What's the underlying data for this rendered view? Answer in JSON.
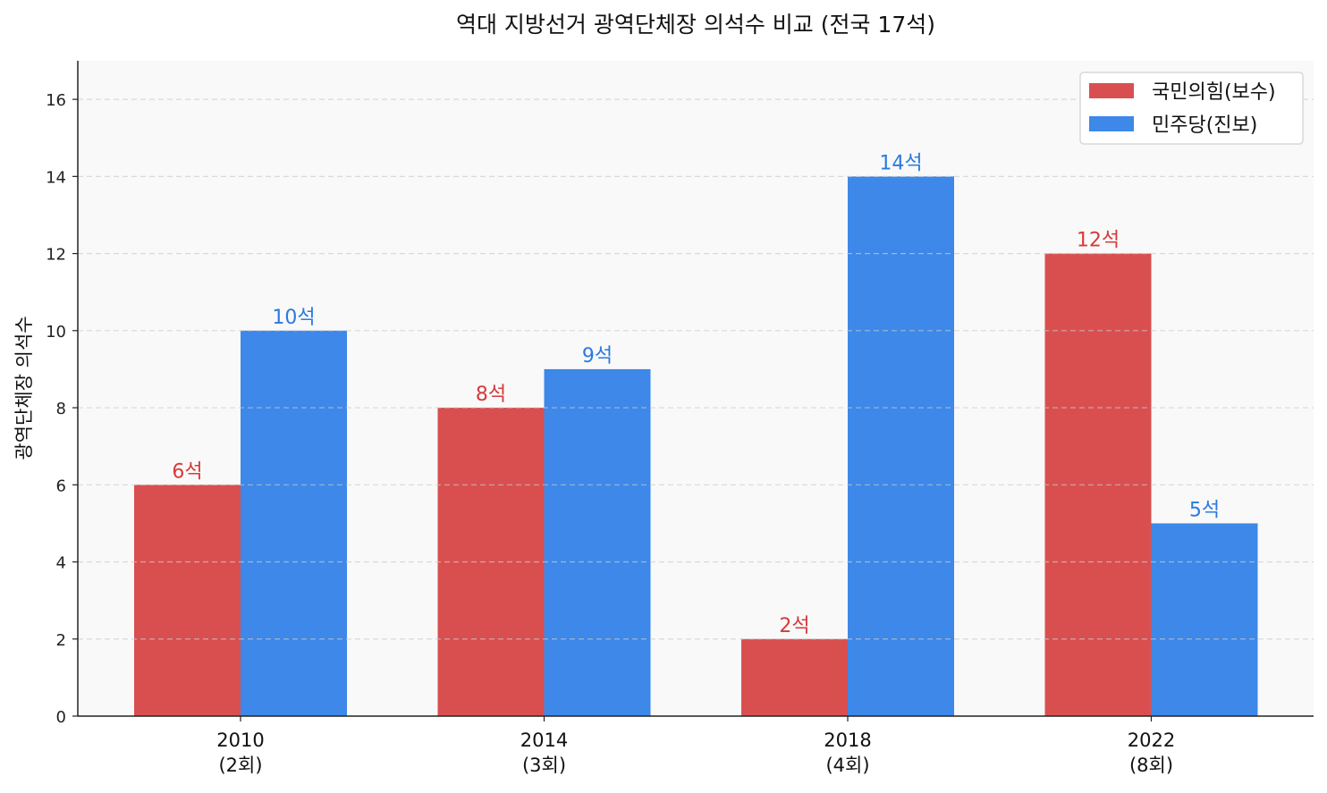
{
  "chart_data": {
    "type": "bar",
    "title": "역대 지방선거 광역단체장 의석수 비교 (전국 17석)",
    "xlabel": "",
    "ylabel": "광역단체장 의석수",
    "categories": [
      "2010\n(2회)",
      "2014\n(3회)",
      "2018\n(4회)",
      "2022\n(8회)"
    ],
    "category_lines": [
      [
        "2010",
        "(2회)"
      ],
      [
        "2014",
        "(3회)"
      ],
      [
        "2018",
        "(4회)"
      ],
      [
        "2022",
        "(8회)"
      ]
    ],
    "series": [
      {
        "name": "국민의힘(보수)",
        "values": [
          6,
          8,
          2,
          12
        ],
        "labels": [
          "6석",
          "8석",
          "2석",
          "12석"
        ],
        "color": "#d94f50",
        "label_color": "#d63a3a"
      },
      {
        "name": "민주당(진보)",
        "values": [
          10,
          9,
          14,
          5
        ],
        "labels": [
          "10석",
          "9석",
          "14석",
          "5석"
        ],
        "color": "#3d88e8",
        "label_color": "#2a7ae0"
      }
    ],
    "ylim": [
      0,
      17
    ],
    "yticks": [
      0,
      2,
      4,
      6,
      8,
      10,
      12,
      14,
      16
    ],
    "grid": "y, dashed",
    "legend": "top-right",
    "background": "#f9f9f9"
  }
}
